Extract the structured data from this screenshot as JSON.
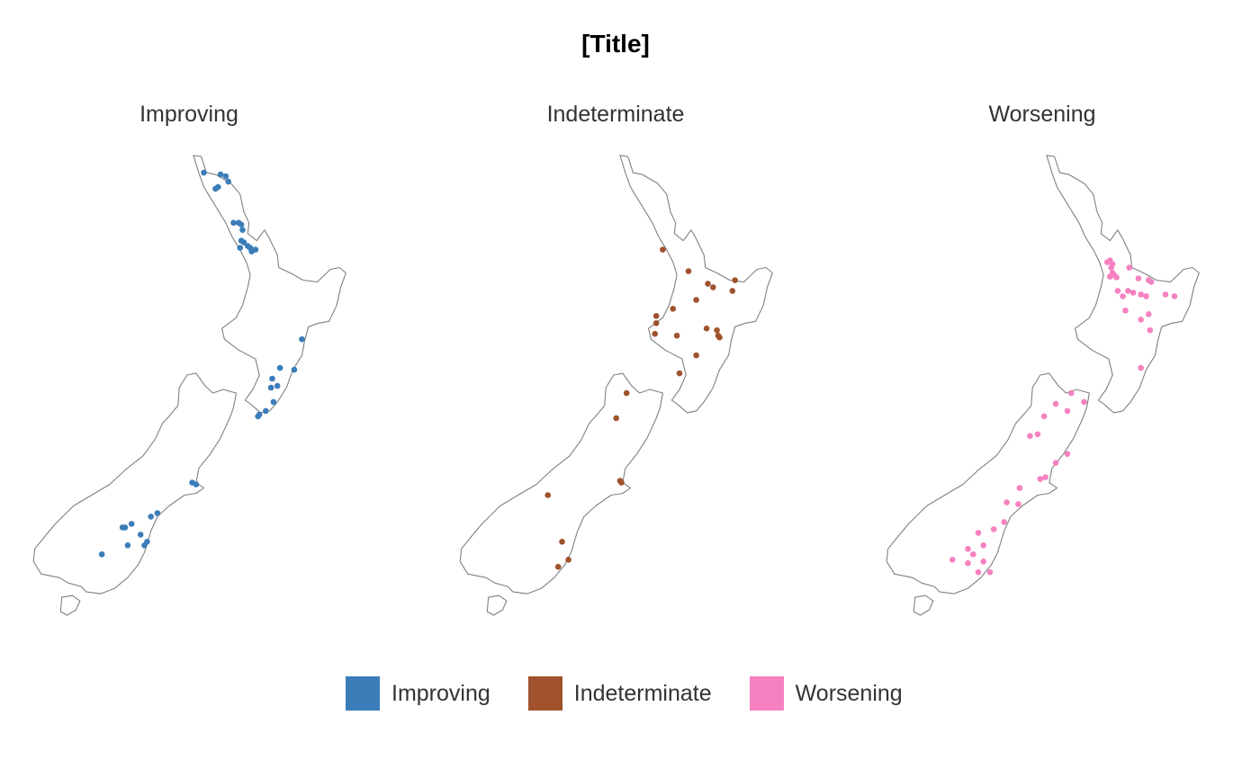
{
  "title": "[Title]",
  "legend": {
    "items": [
      {
        "label": "Improving",
        "color": "#3a7db8"
      },
      {
        "label": "Indeterminate",
        "color": "#a0522d"
      },
      {
        "label": "Worsening",
        "color": "#f681c0"
      }
    ]
  },
  "panels": [
    {
      "label": "Improving",
      "color": "#3a7db8",
      "sites": [
        [
          173.05,
          -34.9
        ],
        [
          173.7,
          -34.95
        ],
        [
          173.9,
          -35.0
        ],
        [
          174.0,
          -35.15
        ],
        [
          173.5,
          -35.35
        ],
        [
          173.6,
          -35.3
        ],
        [
          174.2,
          -36.3
        ],
        [
          174.4,
          -36.3
        ],
        [
          174.5,
          -36.35
        ],
        [
          174.55,
          -36.5
        ],
        [
          174.5,
          -36.8
        ],
        [
          174.6,
          -36.85
        ],
        [
          174.45,
          -37.0
        ],
        [
          174.75,
          -36.95
        ],
        [
          175.05,
          -37.05
        ],
        [
          174.9,
          -37.1
        ],
        [
          174.85,
          -37.0
        ],
        [
          176.85,
          -39.55
        ],
        [
          176.0,
          -40.35
        ],
        [
          176.55,
          -40.4
        ],
        [
          175.7,
          -40.65
        ],
        [
          175.65,
          -40.9
        ],
        [
          175.9,
          -40.85
        ],
        [
          175.75,
          -41.3
        ],
        [
          175.45,
          -41.55
        ],
        [
          175.2,
          -41.65
        ],
        [
          175.15,
          -41.7
        ],
        [
          172.6,
          -43.55
        ],
        [
          172.75,
          -43.6
        ],
        [
          171.25,
          -44.4
        ],
        [
          170.25,
          -44.7
        ],
        [
          170.0,
          -44.8
        ],
        [
          169.9,
          -44.8
        ],
        [
          170.6,
          -45.0
        ],
        [
          171.0,
          -44.5
        ],
        [
          170.85,
          -45.2
        ],
        [
          170.1,
          -45.3
        ],
        [
          170.75,
          -45.3
        ],
        [
          169.1,
          -45.55
        ]
      ]
    },
    {
      "label": "Indeterminate",
      "color": "#a0522d",
      "sites": [
        [
          174.3,
          -37.05
        ],
        [
          175.3,
          -37.65
        ],
        [
          176.05,
          -38.0
        ],
        [
          176.25,
          -38.1
        ],
        [
          177.1,
          -37.9
        ],
        [
          177.0,
          -38.2
        ],
        [
          175.6,
          -38.45
        ],
        [
          174.7,
          -38.7
        ],
        [
          174.05,
          -38.9
        ],
        [
          174.05,
          -39.1
        ],
        [
          174.0,
          -39.4
        ],
        [
          174.85,
          -39.45
        ],
        [
          176.0,
          -39.25
        ],
        [
          176.4,
          -39.3
        ],
        [
          176.45,
          -39.45
        ],
        [
          176.5,
          -39.5
        ],
        [
          175.6,
          -40.0
        ],
        [
          174.95,
          -40.5
        ],
        [
          172.9,
          -41.05
        ],
        [
          172.5,
          -41.75
        ],
        [
          172.65,
          -43.5
        ],
        [
          172.7,
          -43.55
        ],
        [
          169.85,
          -43.9
        ],
        [
          170.4,
          -45.2
        ],
        [
          170.65,
          -45.7
        ],
        [
          170.25,
          -45.9
        ]
      ]
    },
    {
      "label": "Worsening",
      "color": "#f681c0",
      "sites": [
        [
          175.0,
          -37.4
        ],
        [
          175.1,
          -37.35
        ],
        [
          175.2,
          -37.45
        ],
        [
          175.15,
          -37.55
        ],
        [
          175.2,
          -37.7
        ],
        [
          175.25,
          -37.75
        ],
        [
          175.1,
          -37.8
        ],
        [
          175.35,
          -37.82
        ],
        [
          175.85,
          -37.55
        ],
        [
          176.2,
          -37.85
        ],
        [
          176.6,
          -37.9
        ],
        [
          176.7,
          -37.95
        ],
        [
          175.4,
          -38.2
        ],
        [
          175.8,
          -38.2
        ],
        [
          176.0,
          -38.25
        ],
        [
          175.6,
          -38.35
        ],
        [
          176.3,
          -38.3
        ],
        [
          176.5,
          -38.35
        ],
        [
          177.25,
          -38.3
        ],
        [
          177.6,
          -38.35
        ],
        [
          175.7,
          -38.75
        ],
        [
          176.6,
          -38.85
        ],
        [
          176.3,
          -39.0
        ],
        [
          176.65,
          -39.3
        ],
        [
          176.3,
          -40.35
        ],
        [
          173.6,
          -41.05
        ],
        [
          174.1,
          -41.3
        ],
        [
          173.0,
          -41.35
        ],
        [
          173.45,
          -41.55
        ],
        [
          172.55,
          -41.7
        ],
        [
          172.0,
          -42.25
        ],
        [
          172.3,
          -42.2
        ],
        [
          173.45,
          -42.75
        ],
        [
          173.0,
          -43.0
        ],
        [
          172.6,
          -43.4
        ],
        [
          172.4,
          -43.45
        ],
        [
          171.6,
          -43.7
        ],
        [
          171.1,
          -44.1
        ],
        [
          171.55,
          -44.15
        ],
        [
          171.0,
          -44.65
        ],
        [
          170.6,
          -44.85
        ],
        [
          170.0,
          -44.95
        ],
        [
          169.6,
          -45.4
        ],
        [
          170.2,
          -45.3
        ],
        [
          169.8,
          -45.55
        ],
        [
          169.0,
          -45.7
        ],
        [
          169.6,
          -45.8
        ],
        [
          170.2,
          -45.75
        ],
        [
          170.0,
          -46.05
        ],
        [
          170.45,
          -46.05
        ]
      ]
    }
  ]
}
